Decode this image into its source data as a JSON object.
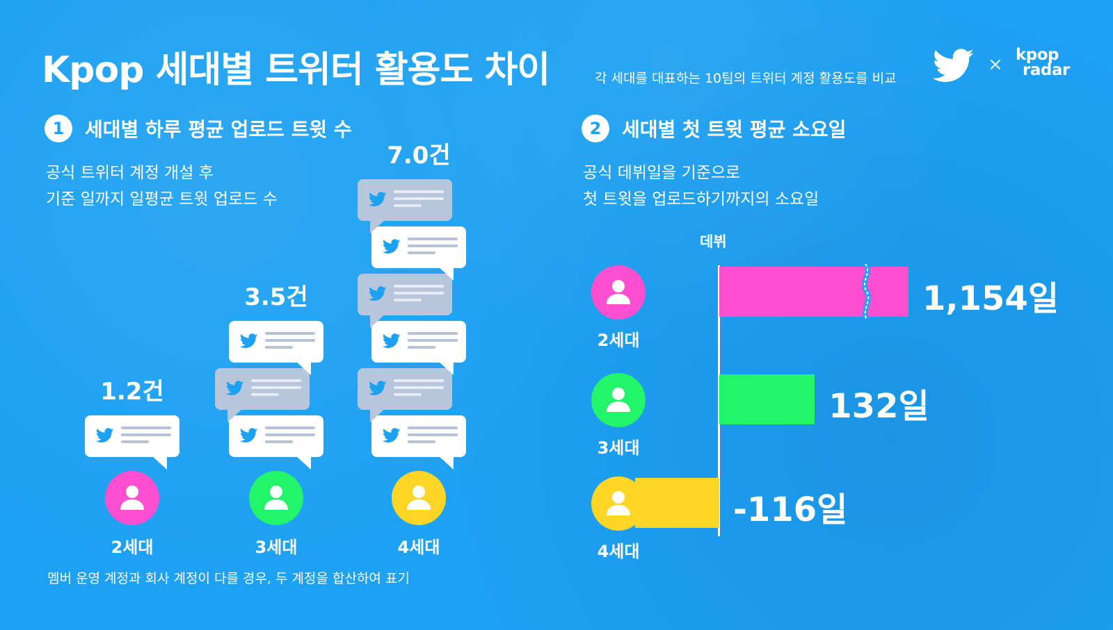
{
  "header": {
    "title": "Kpop 세대별 트위터 활용도 차이",
    "subtitle": "각 세대를 대표하는 10팀의 트위터 계정 활용도를 비교",
    "logo_x": "×",
    "logo_kpop_top": "kpop",
    "logo_kpop_bottom": "radar"
  },
  "section1": {
    "num": "1",
    "title": "세대별 하루 평균 업로드 트윗 수",
    "desc_line1": "공식 트위터 계정 개설 후",
    "desc_line2": "기준 일까지 일평균 트윗 업로드 수"
  },
  "section2": {
    "num": "2",
    "title": "세대별 첫 트윗 평균 소요일",
    "desc_line1": "공식 데뷔일을 기준으로",
    "desc_line2": "첫 트윗을 업로드하기까지의 소요일",
    "axis_label": "데뷔"
  },
  "footnote": "멤버 운영 계정과 회사 계정이 다를 경우, 두 계정을 합산하여 표기",
  "colors": {
    "background": "#1da1f2",
    "gen2": "#ff4fd1",
    "gen3": "#22f56a",
    "gen4": "#ffd626",
    "bubble_white": "#ffffff",
    "bubble_grey": "#b7c6dc"
  },
  "chart_data": [
    {
      "type": "bar",
      "title": "세대별 하루 평균 업로드 트윗 수",
      "categories": [
        "2세대",
        "3세대",
        "4세대"
      ],
      "values": [
        1.2,
        3.5,
        7.0
      ],
      "value_labels": [
        "1.2건",
        "3.5건",
        "7.0건"
      ],
      "bubble_counts": [
        1,
        3,
        6
      ]
    },
    {
      "type": "bar",
      "orientation": "horizontal",
      "title": "세대별 첫 트윗 평균 소요일",
      "categories": [
        "2세대",
        "3세대",
        "4세대"
      ],
      "values": [
        1154,
        132,
        -116
      ],
      "value_labels": [
        "1,154일",
        "132일",
        "-116일"
      ],
      "axis_break_on": [
        "2세대"
      ]
    }
  ]
}
